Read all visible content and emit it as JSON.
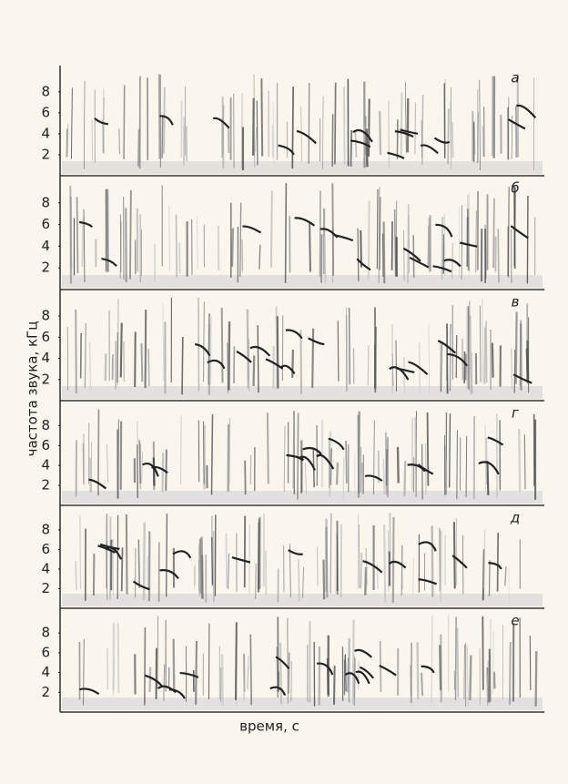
{
  "ylabel": "частота звука, кГц",
  "xlabel": "время, с",
  "chart_data": [
    {
      "type": "spectrogram",
      "label": "а",
      "ylim": [
        0,
        10.5
      ],
      "yticks": [
        2,
        4,
        6,
        8
      ]
    },
    {
      "type": "spectrogram",
      "label": "б",
      "ylim": [
        0,
        10.5
      ],
      "yticks": [
        2,
        4,
        6,
        8
      ]
    },
    {
      "type": "spectrogram",
      "label": "в",
      "ylim": [
        0,
        10.5
      ],
      "yticks": [
        2,
        4,
        6,
        8
      ]
    },
    {
      "type": "spectrogram",
      "label": "г",
      "ylim": [
        0,
        10.5
      ],
      "yticks": [
        2,
        4,
        6,
        8
      ]
    },
    {
      "type": "spectrogram",
      "label": "д",
      "ylim": [
        0,
        10.5
      ],
      "yticks": [
        2,
        4,
        6,
        8
      ]
    },
    {
      "type": "spectrogram",
      "label": "е",
      "ylim": [
        0,
        10.5
      ],
      "yticks": [
        2,
        4,
        6,
        8
      ]
    }
  ]
}
